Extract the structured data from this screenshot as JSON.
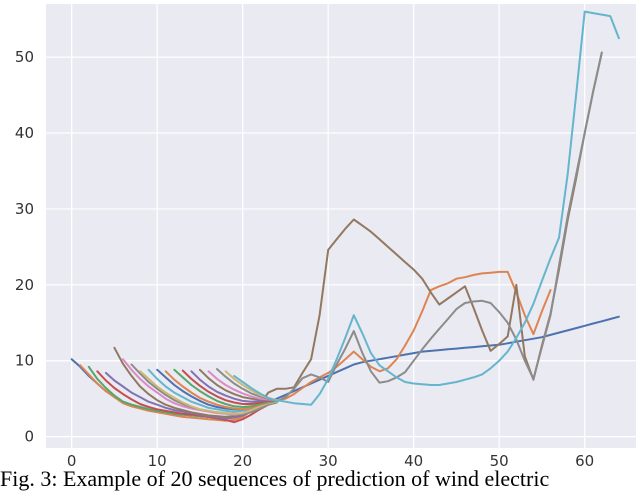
{
  "caption": "Fig. 3: Example of 20 sequences of prediction of wind electric",
  "chart_data": {
    "type": "line",
    "title": "",
    "xlabel": "",
    "ylabel": "",
    "xlim": [
      -3,
      66
    ],
    "ylim": [
      -1.5,
      57
    ],
    "xticks": [
      0,
      10,
      20,
      30,
      40,
      50,
      60
    ],
    "yticks": [
      0,
      10,
      20,
      30,
      40,
      50
    ],
    "grid": true,
    "background": "#eaeaf2",
    "colors": [
      "#4c72b0",
      "#dd8452",
      "#55a868",
      "#c44e52",
      "#8172b3",
      "#937860",
      "#da8bc3",
      "#8c8c8c",
      "#ccb974",
      "#64b5cd"
    ],
    "series": [
      {
        "x": [
          0,
          1,
          2,
          3,
          4,
          5,
          6,
          7,
          8,
          9,
          10,
          11,
          12,
          13,
          14,
          15,
          16,
          17,
          18,
          19,
          20,
          21,
          22,
          23,
          24,
          25,
          26,
          27,
          28,
          29,
          30,
          31,
          32,
          33,
          34,
          35,
          36,
          37,
          38,
          39,
          40,
          41,
          42,
          43,
          44,
          45,
          46,
          47,
          48,
          49,
          50,
          51,
          52,
          53,
          54,
          55,
          56,
          57,
          58,
          59,
          60,
          61,
          62,
          63,
          64
        ],
        "y": [
          10.2,
          9.2,
          8.0,
          7.0,
          6.0,
          5.2,
          4.6,
          4.2,
          3.9,
          3.6,
          3.3,
          3.1,
          3.0,
          2.9,
          2.8,
          2.7,
          2.6,
          2.5,
          2.5,
          2.6,
          3.0,
          3.8,
          4.2,
          4.6,
          5.0,
          5.5,
          6.0,
          6.5,
          7.0,
          7.5,
          8.0,
          8.5,
          9.0,
          9.5,
          9.8,
          10.0,
          10.2,
          10.4,
          10.6,
          10.8,
          11.0,
          11.2,
          11.3,
          11.4,
          11.5,
          11.6,
          11.7,
          11.8,
          11.9,
          12.0,
          12.1,
          12.3,
          12.5,
          12.7,
          12.9,
          13.1,
          13.4,
          13.7,
          14.0,
          14.3,
          14.6,
          14.9,
          15.2,
          15.5,
          15.8
        ]
      },
      {
        "x": [
          1,
          2,
          3,
          4,
          5,
          6,
          7,
          8,
          9,
          10,
          11,
          12,
          13,
          14,
          15,
          16,
          17,
          18,
          19,
          20,
          21,
          22,
          23,
          24,
          25,
          26,
          27,
          28,
          29,
          30,
          31,
          32,
          33,
          34,
          35,
          36,
          37,
          38,
          39,
          40,
          41,
          42,
          43,
          44,
          45,
          46,
          47,
          48,
          49,
          50,
          51,
          52,
          53,
          54,
          55,
          56
        ],
        "y": [
          9.4,
          8.2,
          7.0,
          6.0,
          5.2,
          4.4,
          4.0,
          3.7,
          3.4,
          3.2,
          3.0,
          2.8,
          2.6,
          2.5,
          2.4,
          2.3,
          2.2,
          2.1,
          2.2,
          2.6,
          3.4,
          4.0,
          4.4,
          4.7,
          5.0,
          5.6,
          6.4,
          7.2,
          7.8,
          8.4,
          9.2,
          10.2,
          11.2,
          10.2,
          9.2,
          8.6,
          9.0,
          10.2,
          12.0,
          14.0,
          16.5,
          19.3,
          19.8,
          20.2,
          20.8,
          21.0,
          21.3,
          21.5,
          21.6,
          21.7,
          21.7,
          19.0,
          16.0,
          13.5,
          16.5,
          19.3
        ]
      },
      {
        "x": [
          2,
          3,
          4,
          5,
          6,
          7,
          8,
          9,
          10,
          11,
          12,
          13,
          14,
          15,
          16,
          17,
          18,
          19,
          20,
          21,
          22,
          23,
          24
        ],
        "y": [
          9.2,
          7.6,
          6.4,
          5.4,
          4.6,
          4.2,
          3.9,
          3.6,
          3.4,
          3.2,
          3.0,
          2.9,
          2.8,
          2.7,
          2.6,
          2.5,
          2.6,
          2.7,
          2.9,
          3.3,
          3.8,
          4.2,
          4.5
        ]
      },
      {
        "x": [
          3,
          4,
          5,
          6,
          7,
          8,
          9,
          10,
          11,
          12,
          13,
          14,
          15,
          16,
          17,
          18,
          19,
          20,
          21,
          22,
          23,
          24
        ],
        "y": [
          8.6,
          7.4,
          6.4,
          5.6,
          4.9,
          4.3,
          3.9,
          3.6,
          3.4,
          3.2,
          3.0,
          2.9,
          2.8,
          2.6,
          2.4,
          2.2,
          1.9,
          2.3,
          2.9,
          3.6,
          4.2,
          4.6
        ]
      },
      {
        "x": [
          4,
          5,
          6,
          7,
          8,
          9,
          10,
          11,
          12,
          13,
          14,
          15,
          16,
          17,
          18,
          19,
          20,
          21,
          22,
          23,
          24
        ],
        "y": [
          8.4,
          7.4,
          6.6,
          5.8,
          5.2,
          4.6,
          4.2,
          3.8,
          3.5,
          3.3,
          3.1,
          2.9,
          2.7,
          2.5,
          2.4,
          2.5,
          2.8,
          3.3,
          3.9,
          4.3,
          4.6
        ]
      },
      {
        "x": [
          5,
          6,
          7,
          8,
          9,
          10,
          11,
          12,
          13,
          14,
          15,
          16,
          17,
          18,
          19,
          20,
          21,
          22,
          23,
          24,
          25,
          26,
          27,
          28,
          29,
          30,
          31,
          32,
          33,
          34,
          35,
          36,
          37,
          38,
          39,
          40,
          41,
          42,
          43,
          44,
          45,
          46,
          47,
          48,
          49,
          50,
          51,
          52,
          53,
          54,
          55,
          56,
          57,
          58,
          59,
          60,
          61,
          62
        ],
        "y": [
          11.7,
          9.6,
          8.0,
          6.6,
          5.6,
          4.8,
          4.2,
          3.8,
          3.5,
          3.2,
          3.0,
          2.8,
          2.7,
          2.6,
          2.7,
          3.0,
          3.6,
          4.3,
          5.8,
          6.3,
          6.3,
          6.5,
          8.4,
          10.2,
          16.0,
          24.6,
          26.0,
          27.4,
          28.6,
          27.8,
          27.0,
          26.0,
          25.0,
          24.0,
          23.0,
          22.0,
          20.8,
          19.0,
          17.4,
          18.2,
          19.0,
          19.8,
          17.0,
          14.0,
          11.3,
          12.2,
          13.2,
          20.0,
          10.6,
          7.5,
          12.0,
          16.2,
          22.0,
          28.5,
          34.0,
          40.0,
          45.5,
          50.6
        ]
      },
      {
        "x": [
          6,
          7,
          8,
          9,
          10,
          11,
          12,
          13,
          14,
          15,
          16,
          17,
          18,
          19,
          20,
          21,
          22,
          23,
          24
        ],
        "y": [
          10.2,
          8.8,
          7.6,
          6.6,
          5.8,
          5.0,
          4.4,
          4.0,
          3.7,
          3.5,
          3.3,
          3.1,
          3.0,
          2.9,
          3.0,
          3.4,
          3.9,
          4.3,
          4.6
        ]
      },
      {
        "x": [
          7,
          8,
          9,
          10,
          11,
          12,
          13,
          14,
          15,
          16,
          17,
          18,
          19,
          20,
          21,
          22,
          23,
          24,
          25,
          26,
          27,
          28,
          29,
          30,
          31,
          32,
          33,
          34,
          35,
          36,
          37,
          38,
          39,
          40,
          41,
          42,
          43,
          44,
          45,
          46,
          47,
          48,
          49,
          50,
          51,
          52,
          53,
          54,
          55,
          56,
          57,
          58,
          59,
          60,
          61,
          62
        ],
        "y": [
          9.5,
          8.3,
          7.2,
          6.3,
          5.5,
          4.8,
          4.3,
          3.9,
          3.6,
          3.4,
          3.2,
          3.1,
          3.0,
          3.0,
          3.2,
          3.7,
          4.2,
          4.6,
          5.2,
          6.3,
          7.7,
          8.2,
          7.8,
          7.2,
          9.5,
          11.6,
          13.9,
          11.0,
          8.6,
          7.1,
          7.3,
          7.8,
          8.5,
          10.0,
          11.5,
          12.9,
          14.2,
          15.5,
          16.8,
          17.6,
          17.8,
          17.9,
          17.6,
          16.4,
          15.0,
          12.8,
          10.0,
          7.6,
          11.8,
          16.0,
          22.5,
          29.0,
          34.5,
          40.0,
          45.5,
          50.6
        ]
      },
      {
        "x": [
          8,
          9,
          10,
          11,
          12,
          13,
          14,
          15,
          16,
          17,
          18,
          19,
          20,
          21,
          22,
          23,
          24
        ],
        "y": [
          8.6,
          7.6,
          6.6,
          5.8,
          5.1,
          4.5,
          4.0,
          3.6,
          3.4,
          3.2,
          3.1,
          3.0,
          3.1,
          3.5,
          4.0,
          4.4,
          4.6
        ]
      },
      {
        "x": [
          9,
          10,
          11,
          12,
          13,
          14,
          15,
          16,
          17,
          18,
          19,
          20,
          21,
          22,
          23,
          24,
          25,
          26,
          27,
          28,
          29,
          30,
          31,
          32,
          33,
          34,
          35,
          36,
          37,
          38,
          39,
          40,
          41,
          42,
          43,
          44,
          45,
          46,
          47,
          48,
          49,
          50,
          51,
          52,
          53,
          54,
          55,
          56,
          57,
          58,
          59,
          60,
          61,
          62,
          63,
          64
        ],
        "y": [
          8.8,
          7.6,
          6.6,
          5.8,
          5.2,
          4.6,
          4.2,
          3.8,
          3.6,
          3.4,
          3.3,
          3.4,
          3.8,
          4.3,
          4.6,
          4.8,
          4.6,
          4.4,
          4.3,
          4.2,
          5.6,
          7.6,
          10.2,
          13.0,
          16.0,
          13.6,
          11.0,
          9.4,
          8.6,
          7.8,
          7.2,
          7.0,
          6.9,
          6.8,
          6.8,
          7.0,
          7.2,
          7.5,
          7.8,
          8.2,
          9.0,
          10.0,
          11.2,
          13.0,
          15.0,
          17.5,
          20.5,
          23.5,
          26.2,
          34.5,
          45.0,
          56.0,
          55.8,
          55.6,
          55.4,
          52.5
        ]
      },
      {
        "x": [
          10,
          11,
          12,
          13,
          14,
          15,
          16,
          17,
          18,
          19,
          20,
          21,
          22,
          23,
          24
        ],
        "y": [
          8.8,
          7.8,
          6.8,
          6.0,
          5.3,
          4.7,
          4.2,
          3.9,
          3.7,
          3.6,
          3.6,
          3.9,
          4.3,
          4.6,
          4.7
        ]
      },
      {
        "x": [
          11,
          12,
          13,
          14,
          15,
          16,
          17,
          18,
          19,
          20,
          21,
          22,
          23,
          24
        ],
        "y": [
          8.6,
          7.5,
          6.6,
          5.8,
          5.1,
          4.6,
          4.2,
          3.9,
          3.7,
          3.6,
          3.8,
          4.2,
          4.5,
          4.7
        ]
      },
      {
        "x": [
          12,
          13,
          14,
          15,
          16,
          17,
          18,
          19,
          20,
          21,
          22,
          23,
          24
        ],
        "y": [
          8.8,
          7.8,
          6.8,
          6.0,
          5.3,
          4.7,
          4.3,
          4.0,
          3.9,
          4.0,
          4.3,
          4.6,
          4.7
        ]
      },
      {
        "x": [
          13,
          14,
          15,
          16,
          17,
          18,
          19,
          20,
          21,
          22,
          23,
          24
        ],
        "y": [
          8.7,
          7.6,
          6.7,
          5.9,
          5.3,
          4.8,
          4.5,
          4.3,
          4.3,
          4.5,
          4.7,
          4.8
        ]
      },
      {
        "x": [
          14,
          15,
          16,
          17,
          18,
          19,
          20,
          21,
          22,
          23,
          24
        ],
        "y": [
          8.6,
          7.5,
          6.6,
          5.9,
          5.4,
          5.0,
          4.7,
          4.6,
          4.7,
          4.8,
          4.8
        ]
      },
      {
        "x": [
          15,
          16,
          17,
          18,
          19,
          20,
          21,
          22,
          23,
          24
        ],
        "y": [
          8.8,
          7.7,
          6.8,
          6.1,
          5.6,
          5.2,
          5.0,
          4.9,
          4.9,
          4.8
        ]
      },
      {
        "x": [
          16,
          17,
          18,
          19,
          20,
          21,
          22,
          23,
          24
        ],
        "y": [
          8.6,
          7.6,
          6.8,
          6.2,
          5.7,
          5.3,
          5.0,
          4.9,
          4.8
        ]
      },
      {
        "x": [
          17,
          18,
          19,
          20,
          21,
          22,
          23,
          24
        ],
        "y": [
          8.9,
          7.9,
          7.0,
          6.3,
          5.7,
          5.3,
          5.0,
          4.8
        ]
      },
      {
        "x": [
          18,
          19,
          20,
          21,
          22,
          23,
          24
        ],
        "y": [
          8.6,
          7.6,
          6.8,
          6.1,
          5.5,
          5.1,
          4.8
        ]
      },
      {
        "x": [
          19,
          20,
          21,
          22,
          23,
          24
        ],
        "y": [
          8.0,
          7.2,
          6.4,
          5.7,
          5.1,
          4.7
        ]
      }
    ]
  }
}
